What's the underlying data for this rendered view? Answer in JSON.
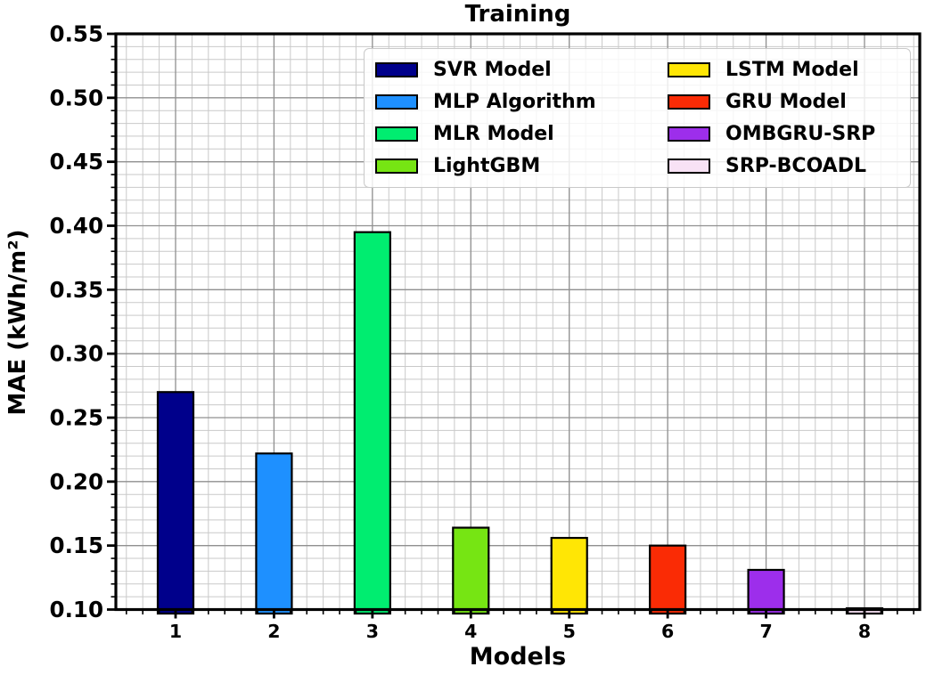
{
  "chart_data": {
    "type": "bar",
    "title": "Training",
    "xlabel": "Models",
    "ylabel": "MAE (kWh/m²)",
    "categories": [
      "1",
      "2",
      "3",
      "4",
      "5",
      "6",
      "7",
      "8"
    ],
    "bars": [
      {
        "label": "SVR Model",
        "value": 0.27,
        "color": "#00008B"
      },
      {
        "label": "MLP Algorithm",
        "value": 0.222,
        "color": "#1E90FF"
      },
      {
        "label": "MLR Model",
        "value": 0.395,
        "color": "#00ED70"
      },
      {
        "label": "LightGBM",
        "value": 0.164,
        "color": "#76E513"
      },
      {
        "label": "LSTM Model",
        "value": 0.156,
        "color": "#FFE605"
      },
      {
        "label": "GRU Model",
        "value": 0.15,
        "color": "#FA2B05"
      },
      {
        "label": "OMBGRU-SRP",
        "value": 0.131,
        "color": "#9D2EEB"
      },
      {
        "label": "SRP-BCOADL",
        "value": 0.101,
        "color": "#F8E2F5"
      }
    ],
    "ylim": [
      0.1,
      0.55
    ],
    "ytick_step": 0.05,
    "y_minor_step": 0.01,
    "grid": "both",
    "legend": {
      "position": "upper right",
      "columns": 2
    }
  },
  "colors": {
    "axis": "#000000",
    "bar_edge": "#000000",
    "major_grid": "#909090",
    "minor_grid": "#c9c9c9",
    "background": "#ffffff",
    "text": "#000000"
  }
}
